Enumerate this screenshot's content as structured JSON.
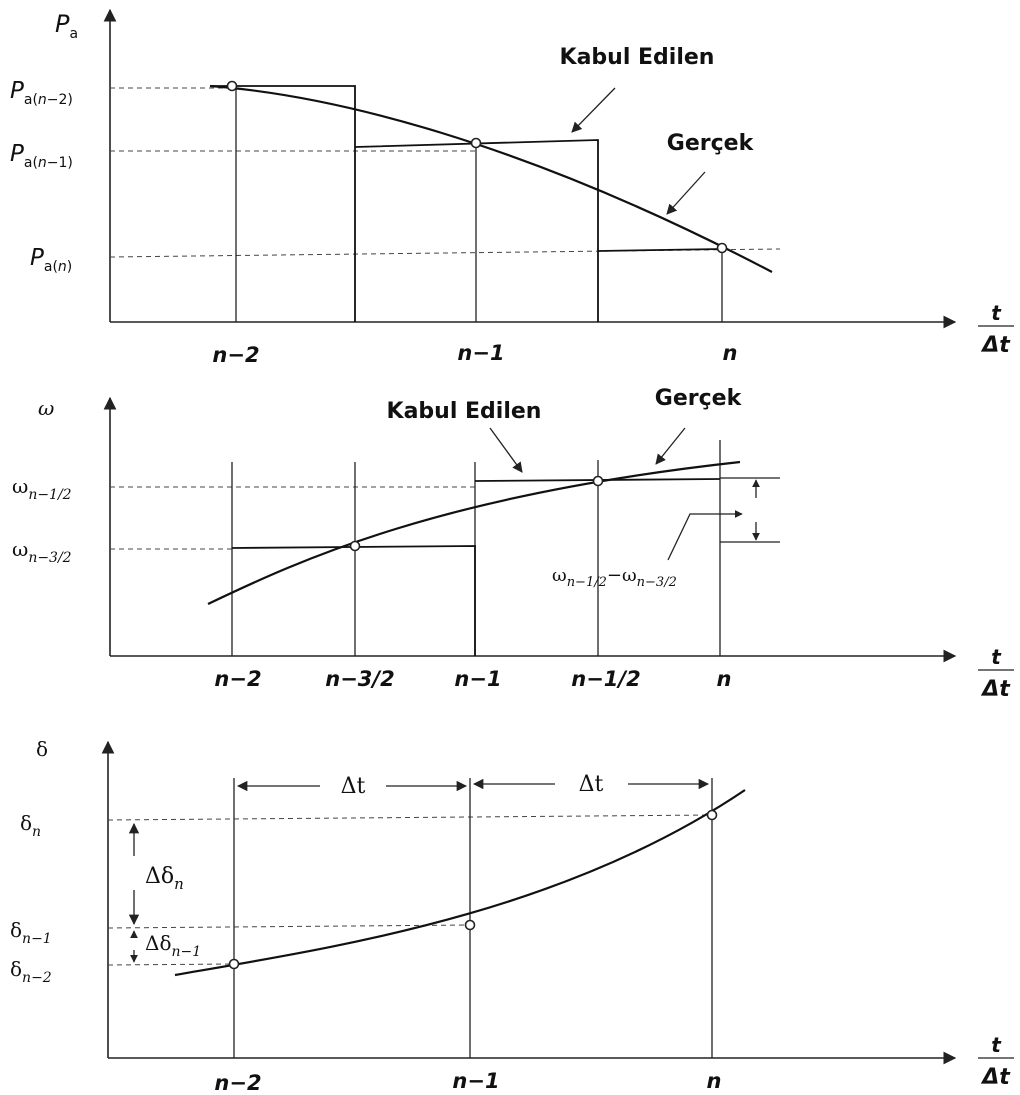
{
  "panel1": {
    "y_axis": "P",
    "y_axis_sub": "a",
    "levels": [
      {
        "base": "P",
        "sub": "a(",
        "sub_it": "n",
        "sub_tail": "−2)"
      },
      {
        "base": "P",
        "sub": "a(",
        "sub_it": "n",
        "sub_tail": "−1)"
      },
      {
        "base": "P",
        "sub": "a(",
        "sub_it": "n",
        "sub_tail": ")"
      }
    ],
    "x_ticks": [
      "n−2",
      "n−1",
      "n"
    ],
    "x_axis_num": "t",
    "x_axis_den": "Δt",
    "label_assumed": "Kabul Edilen",
    "label_actual": "Gerçek"
  },
  "panel2": {
    "y_axis": "ω",
    "levels": [
      {
        "base": "ω",
        "sub": "n−1/2"
      },
      {
        "base": "ω",
        "sub": "n−3/2"
      }
    ],
    "x_ticks": [
      "n−2",
      "n−3/2",
      "n−1",
      "n−1/2",
      "n"
    ],
    "x_axis_num": "t",
    "x_axis_den": "Δt",
    "label_assumed": "Kabul Edilen",
    "label_actual": "Gerçek",
    "diff_a": "ω",
    "diff_a_sub": "n−1/2",
    "diff_minus": "−",
    "diff_b": "ω",
    "diff_b_sub": "n−3/2"
  },
  "panel3": {
    "y_axis": "δ",
    "levels": [
      {
        "base": "δ",
        "sub": "n"
      },
      {
        "base": "δ",
        "sub": "n−1"
      },
      {
        "base": "δ",
        "sub": "n−2"
      }
    ],
    "x_ticks": [
      "n−2",
      "n−1",
      "n"
    ],
    "x_axis_num": "t",
    "x_axis_den": "Δt",
    "interval_1": "Δt",
    "interval_2": "Δt",
    "delta_1": "Δδ",
    "delta_1_sub": "n",
    "delta_2": "Δδ",
    "delta_2_sub": "n−1"
  }
}
